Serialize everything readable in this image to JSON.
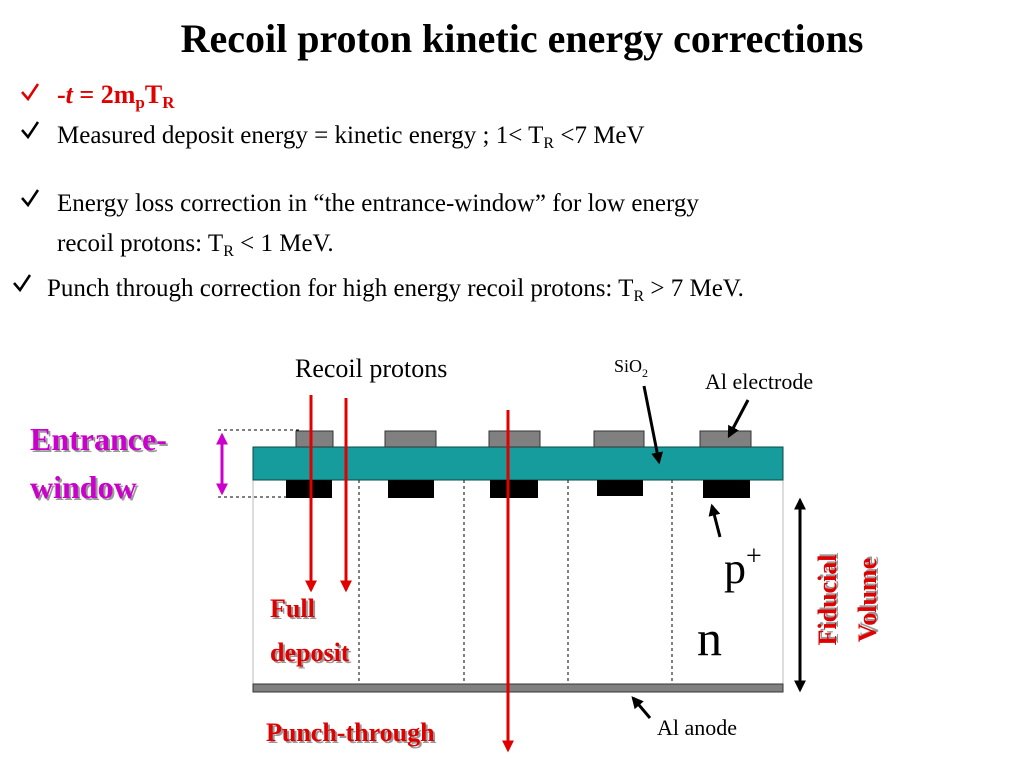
{
  "title": "Recoil proton kinetic energy corrections",
  "bullets": [
    {
      "parts": [
        "-",
        "t",
        " = 2m",
        "p",
        "T",
        "R"
      ]
    },
    {
      "parts": [
        "Measured deposit energy = kinetic energy ; 1< T",
        "R",
        " <7 MeV"
      ]
    },
    {
      "lines": [
        {
          "parts": [
            "Energy loss correction in “the entrance-window” for low energy"
          ]
        },
        {
          "parts": [
            "recoil protons:  T",
            "R",
            " < 1 MeV."
          ]
        }
      ]
    },
    {
      "parts": [
        "Punch through correction for high energy recoil protons: T",
        "R",
        " > 7 MeV."
      ]
    }
  ],
  "diagram": {
    "recoil_protons": "Recoil protons",
    "sio2": [
      "SiO",
      "2"
    ],
    "al_electrode": "Al electrode",
    "entrance_window": [
      "Entrance-",
      "window"
    ],
    "p_plus": [
      "p",
      "+"
    ],
    "n": "n",
    "full_deposit": [
      "Full",
      "deposit"
    ],
    "punch_through": "Punch-through",
    "al_anode": "Al anode",
    "fiducial_volume": [
      "Fiducial",
      "Volume"
    ]
  }
}
